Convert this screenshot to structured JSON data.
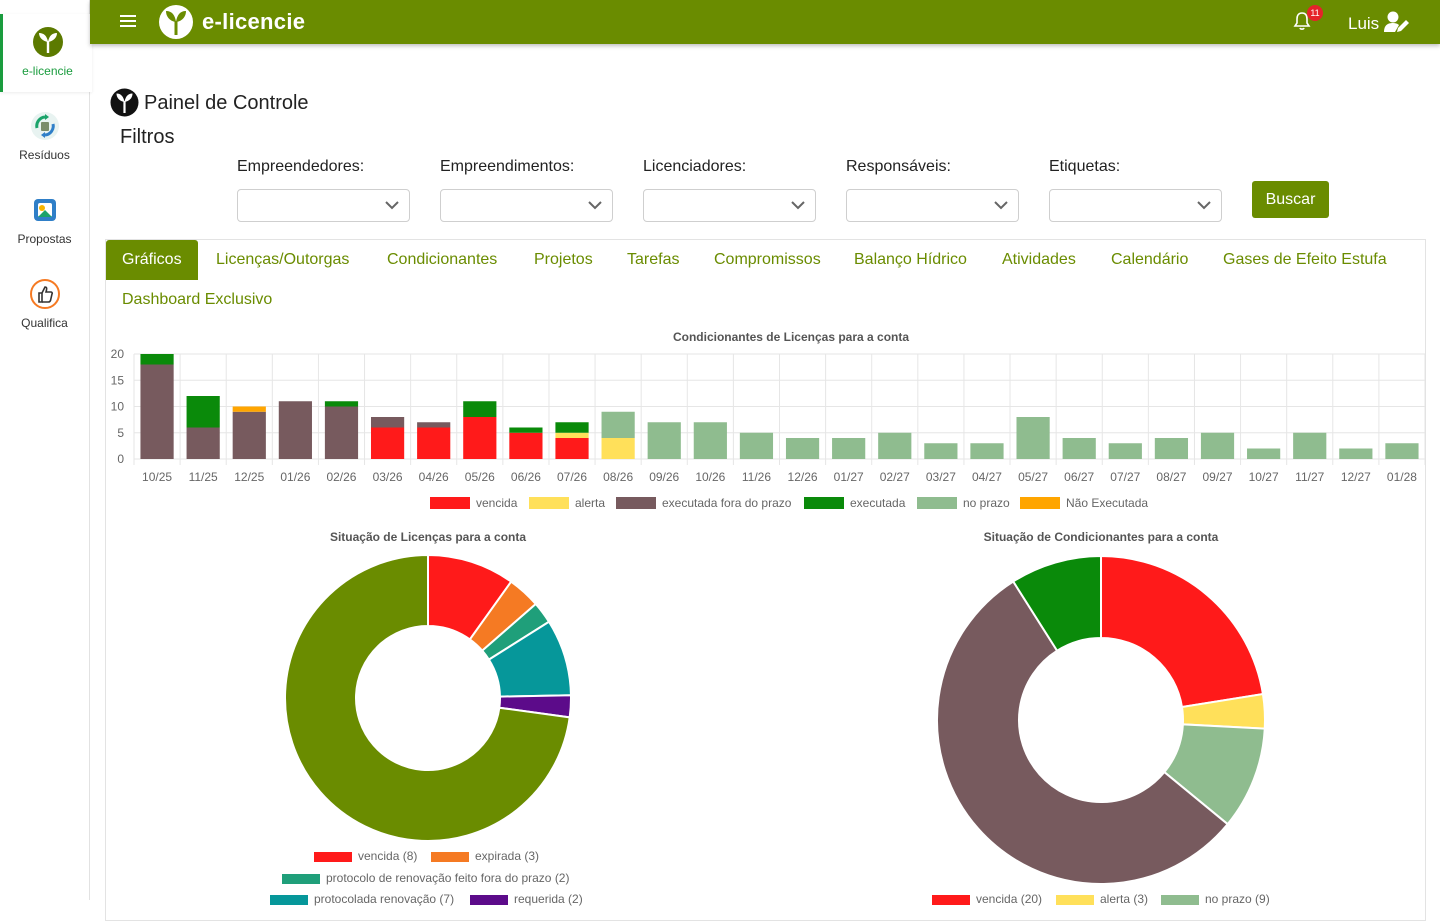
{
  "sidebar": {
    "items": [
      {
        "label": "e-licencie",
        "icon": "sprout-logo-icon",
        "active": true
      },
      {
        "label": "Resíduos",
        "icon": "recycle-icon",
        "active": false
      },
      {
        "label": "Propostas",
        "icon": "proposal-icon",
        "active": false
      },
      {
        "label": "Qualifica",
        "icon": "thumbs-up-icon",
        "active": false
      }
    ]
  },
  "topbar": {
    "brand": "e-licencie",
    "notification_count": "11",
    "user_name": "Luis",
    "color": "#6a8c00"
  },
  "page": {
    "title": "Painel de Controle",
    "filters_title": "Filtros"
  },
  "filters": {
    "items": [
      {
        "label": "Empreendedores:",
        "value": ""
      },
      {
        "label": "Empreendimentos:",
        "value": ""
      },
      {
        "label": "Licenciadores:",
        "value": ""
      },
      {
        "label": "Responsáveis:",
        "value": ""
      },
      {
        "label": "Etiquetas:",
        "value": ""
      }
    ],
    "search_button": "Buscar"
  },
  "tabs": [
    {
      "label": "Gráficos",
      "active": true
    },
    {
      "label": "Licenças/Outorgas"
    },
    {
      "label": "Condicionantes"
    },
    {
      "label": "Projetos"
    },
    {
      "label": "Tarefas"
    },
    {
      "label": "Compromissos"
    },
    {
      "label": "Balanço Hídrico"
    },
    {
      "label": "Atividades"
    },
    {
      "label": "Calendário"
    },
    {
      "label": "Gases de Efeito Estufa"
    },
    {
      "label": "Dashboard Exclusivo"
    }
  ],
  "chart_data": [
    {
      "type": "bar",
      "stacked": true,
      "title": "Condicionantes de Licenças para a conta",
      "ylim": [
        0,
        20
      ],
      "yticks": [
        0,
        5,
        10,
        15,
        20
      ],
      "grid": true,
      "legend_position": "bottom",
      "categories": [
        "10/25",
        "11/25",
        "12/25",
        "01/26",
        "02/26",
        "03/26",
        "04/26",
        "05/26",
        "06/26",
        "07/26",
        "08/26",
        "09/26",
        "10/26",
        "11/26",
        "12/26",
        "01/27",
        "02/27",
        "03/27",
        "04/27",
        "05/27",
        "06/27",
        "07/27",
        "08/27",
        "09/27",
        "10/27",
        "11/27",
        "12/27",
        "01/28"
      ],
      "series": [
        {
          "name": "vencida",
          "color": "#ff1a1a",
          "values": [
            0,
            0,
            0,
            0,
            0,
            6,
            6,
            8,
            5,
            4,
            0,
            0,
            0,
            0,
            0,
            0,
            0,
            0,
            0,
            0,
            0,
            0,
            0,
            0,
            0,
            0,
            0,
            0
          ]
        },
        {
          "name": "alerta",
          "color": "#ffe05a",
          "values": [
            0,
            0,
            0,
            0,
            0,
            0,
            0,
            0,
            0,
            1,
            4,
            0,
            0,
            0,
            0,
            0,
            0,
            0,
            0,
            0,
            0,
            0,
            0,
            0,
            0,
            0,
            0,
            0
          ]
        },
        {
          "name": "executada fora do prazo",
          "color": "#775a5e",
          "values": [
            18,
            6,
            9,
            11,
            10,
            2,
            1,
            0,
            0,
            0,
            0,
            0,
            0,
            0,
            0,
            0,
            0,
            0,
            0,
            0,
            0,
            0,
            0,
            0,
            0,
            0,
            0,
            0
          ]
        },
        {
          "name": "executada",
          "color": "#0a8a0a",
          "values": [
            2,
            6,
            0,
            0,
            1,
            0,
            0,
            3,
            1,
            2,
            0,
            0,
            0,
            0,
            0,
            0,
            0,
            0,
            0,
            0,
            0,
            0,
            0,
            0,
            0,
            0,
            0,
            0
          ]
        },
        {
          "name": "no prazo",
          "color": "#8fbc8f",
          "values": [
            0,
            0,
            0,
            0,
            0,
            0,
            0,
            0,
            0,
            0,
            5,
            7,
            7,
            5,
            4,
            4,
            5,
            3,
            3,
            8,
            4,
            3,
            4,
            5,
            2,
            5,
            2,
            3
          ]
        },
        {
          "name": "Não Executada",
          "color": "#ffa500",
          "values": [
            0,
            0,
            1,
            0,
            0,
            0,
            0,
            0,
            0,
            0,
            0,
            0,
            0,
            0,
            0,
            0,
            0,
            0,
            0,
            0,
            0,
            0,
            0,
            0,
            0,
            0,
            0,
            0
          ]
        }
      ]
    },
    {
      "type": "pie",
      "donut": true,
      "title": "Situação de Licenças para a conta",
      "legend_position": "bottom",
      "slices": [
        {
          "name": "vencida (8)",
          "value": 8,
          "color": "#ff1a1a"
        },
        {
          "name": "expirada (3)",
          "value": 3,
          "color": "#f57a23"
        },
        {
          "name": "protocolo de renovação feito fora do prazo (2)",
          "value": 2,
          "color": "#1f9f7a"
        },
        {
          "name": "protocolada renovação (7)",
          "value": 7,
          "color": "#06979a"
        },
        {
          "name": "requerida (2)",
          "value": 2,
          "color": "#5c0b8a"
        },
        {
          "name": "",
          "value": 59,
          "color": "#6a8c00"
        }
      ]
    },
    {
      "type": "pie",
      "donut": true,
      "title": "Situação de Condicionantes para a conta",
      "legend_position": "bottom",
      "slices": [
        {
          "name": "vencida (20)",
          "value": 20,
          "color": "#ff1a1a"
        },
        {
          "name": "alerta (3)",
          "value": 3,
          "color": "#ffe05a"
        },
        {
          "name": "no prazo (9)",
          "value": 9,
          "color": "#8fbc8f"
        },
        {
          "name": "",
          "value": 49,
          "color": "#775a5e"
        },
        {
          "name": "",
          "value": 8,
          "color": "#0a8a0a"
        }
      ]
    }
  ]
}
